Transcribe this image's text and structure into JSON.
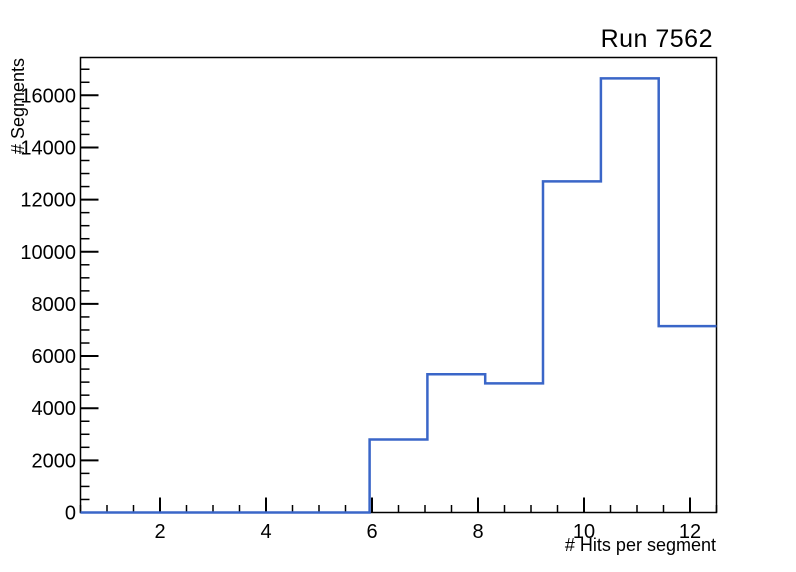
{
  "title": "Run 7562",
  "chart_data": {
    "type": "histogram-step",
    "title": "Run 7562",
    "xlabel": "# Hits per segment",
    "ylabel": "# Segments",
    "x_range": [
      0.5,
      12.5
    ],
    "y_range": [
      0,
      17450
    ],
    "grid": false,
    "legend": null,
    "bin_edges": [
      0.5,
      1.5909,
      2.6818,
      3.7727,
      4.8636,
      5.9545,
      7.0455,
      8.1364,
      9.2273,
      10.3182,
      11.4091,
      12.5
    ],
    "bin_values": [
      0,
      0,
      0,
      0,
      0,
      2800,
      5300,
      4950,
      12700,
      16650,
      7150
    ],
    "x_major_ticks": [
      2,
      4,
      6,
      8,
      10,
      12
    ],
    "x_tick_labels": [
      "2",
      "4",
      "6",
      "8",
      "10",
      "12"
    ],
    "x_minor_step": 0.5,
    "y_major_ticks": [
      0,
      2000,
      4000,
      6000,
      8000,
      10000,
      12000,
      14000,
      16000
    ],
    "y_tick_labels": [
      "0",
      "2000",
      "4000",
      "6000",
      "8000",
      "10000",
      "12000",
      "14000",
      "16000"
    ],
    "y_minor_step": 500,
    "line_color": "#3a66c8",
    "frame_color": "#000000",
    "background_color": "#ffffff"
  }
}
